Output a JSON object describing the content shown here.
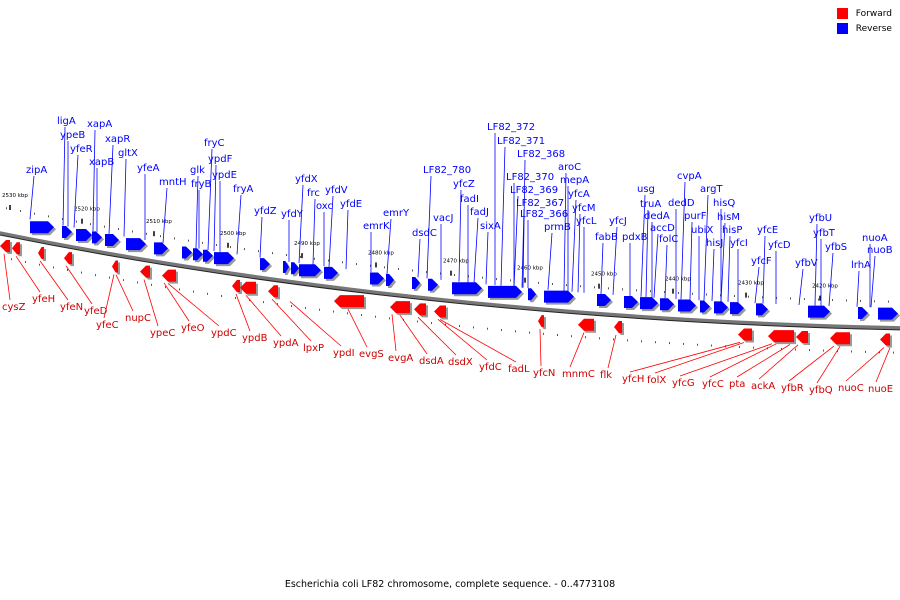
{
  "legend": {
    "forward_label": "Forward",
    "reverse_label": "Reverse",
    "forward_color": "#ff0000",
    "reverse_color": "#0000ff"
  },
  "caption": "Escherichia coli LF82 chromosome, complete sequence. - 0..4773108",
  "axis": {
    "ticks": [
      "2530 kbp",
      "2520 kbp",
      "2510 kbp",
      "2500 kbp",
      "2490 kbp",
      "2480 kbp",
      "2470 kbp",
      "2460 kbp",
      "2450 kbp",
      "2440 kbp",
      "2430 kbp",
      "2420 kbp"
    ]
  },
  "reverse_genes": [
    "zipA",
    "ligA",
    "ypeB",
    "yfeR",
    "xapA",
    "xapB",
    "xapR",
    "gltX",
    "yfeA",
    "mntH",
    "glk",
    "fryB",
    "fryC",
    "ypdF",
    "ypdE",
    "fryA",
    "yfdZ",
    "yfdY",
    "yfdX",
    "frc",
    "oxc",
    "yfdV",
    "yfdE",
    "emrK",
    "emrY",
    "dsdC",
    "vacJ",
    "LF82_780",
    "yfcZ",
    "fadI",
    "fadJ",
    "sixA",
    "LF82_372",
    "LF82_371",
    "LF82_368",
    "LF82_370",
    "LF82_369",
    "LF82_367",
    "LF82_366",
    "prmB",
    "aroC",
    "mepA",
    "yfcA",
    "yfcM",
    "yfcL",
    "yfcJ",
    "fabB",
    "pdxB",
    "usg",
    "truA",
    "dedA",
    "accD",
    "folC",
    "dedD",
    "cvpA",
    "purF",
    "ubiX",
    "argT",
    "hisJ",
    "hisQ",
    "hisM",
    "hisP",
    "yfcI",
    "yfcF",
    "yfcE",
    "yfcD",
    "yfbV",
    "yfbU",
    "yfbT",
    "yfbS",
    "lrhA",
    "nuoA",
    "nuoB"
  ],
  "forward_genes": [
    "cysZ",
    "yfeH",
    "yfeN",
    "yfeD",
    "yfeC",
    "nupC",
    "ypeC",
    "yfeO",
    "ypdC",
    "ypdB",
    "ypdA",
    "lpxP",
    "ypdI",
    "evgS",
    "evgA",
    "dsdA",
    "dsdX",
    "yfdC",
    "fadL",
    "yfcN",
    "mnmC",
    "flk",
    "yfcH",
    "folX",
    "yfcG",
    "yfcC",
    "pta",
    "ackA",
    "yfbR",
    "yfbQ",
    "nuoC",
    "nuoE"
  ]
}
